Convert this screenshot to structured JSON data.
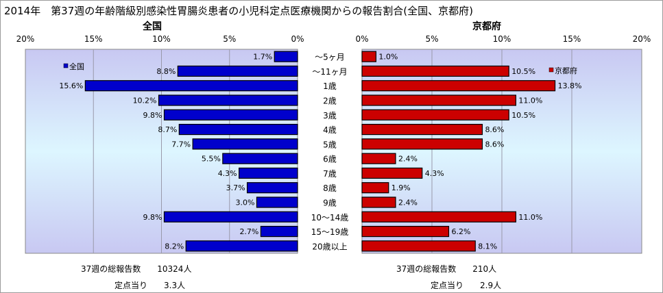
{
  "title": "2014年　第37週の年齢階級別感染性胃腸炎患者の小児科定点医療機関からの報告割合(全国、京都府)",
  "colors": {
    "national": "#0000cc",
    "kyoto": "#cc0000",
    "border": "#000000",
    "grid": "#9999aa"
  },
  "chart_data": [
    {
      "type": "bar",
      "orientation": "horizontal-reversed",
      "title": "全国",
      "legend": "全国",
      "legend_position": "top-left",
      "unit": "%",
      "xlim": [
        0,
        20
      ],
      "ticks": [
        "20%",
        "15%",
        "10%",
        "5%",
        "0%"
      ],
      "categories": [
        "～5ヶ月",
        "～11ヶ月",
        "1歳",
        "2歳",
        "3歳",
        "4歳",
        "5歳",
        "6歳",
        "7歳",
        "8歳",
        "9歳",
        "10～14歳",
        "15～19歳",
        "20歳以上"
      ],
      "values": [
        1.7,
        8.8,
        15.6,
        10.2,
        9.8,
        8.7,
        7.7,
        5.5,
        4.3,
        3.7,
        3.0,
        9.8,
        2.7,
        8.2
      ],
      "labels": [
        "1.7%",
        "8.8%",
        "15.6%",
        "10.2%",
        "9.8%",
        "8.7%",
        "7.7%",
        "5.5%",
        "4.3%",
        "3.7%",
        "3.0%",
        "9.8%",
        "2.7%",
        "8.2%"
      ]
    },
    {
      "type": "bar",
      "orientation": "horizontal",
      "title": "京都府",
      "legend": "京都府",
      "legend_position": "top-right",
      "unit": "%",
      "xlim": [
        0,
        20
      ],
      "ticks": [
        "0%",
        "5%",
        "10%",
        "15%",
        "20%"
      ],
      "categories": [
        "～5ヶ月",
        "～11ヶ月",
        "1歳",
        "2歳",
        "3歳",
        "4歳",
        "5歳",
        "6歳",
        "7歳",
        "8歳",
        "9歳",
        "10～14歳",
        "15～19歳",
        "20歳以上"
      ],
      "values": [
        1.0,
        10.5,
        13.8,
        11.0,
        10.5,
        8.6,
        8.6,
        2.4,
        4.3,
        1.9,
        2.4,
        11.0,
        6.2,
        8.1
      ],
      "labels": [
        "1.0%",
        "10.5%",
        "13.8%",
        "11.0%",
        "10.5%",
        "8.6%",
        "8.6%",
        "2.4%",
        "4.3%",
        "1.9%",
        "2.4%",
        "11.0%",
        "6.2%",
        "8.1%"
      ]
    }
  ],
  "footer": {
    "national_total": "37週の総報告数　　10324人",
    "national_per_site": "定点当り　　3.3人",
    "kyoto_total": "37週の総報告数　　210人",
    "kyoto_per_site": "定点当り　　2.9人"
  }
}
